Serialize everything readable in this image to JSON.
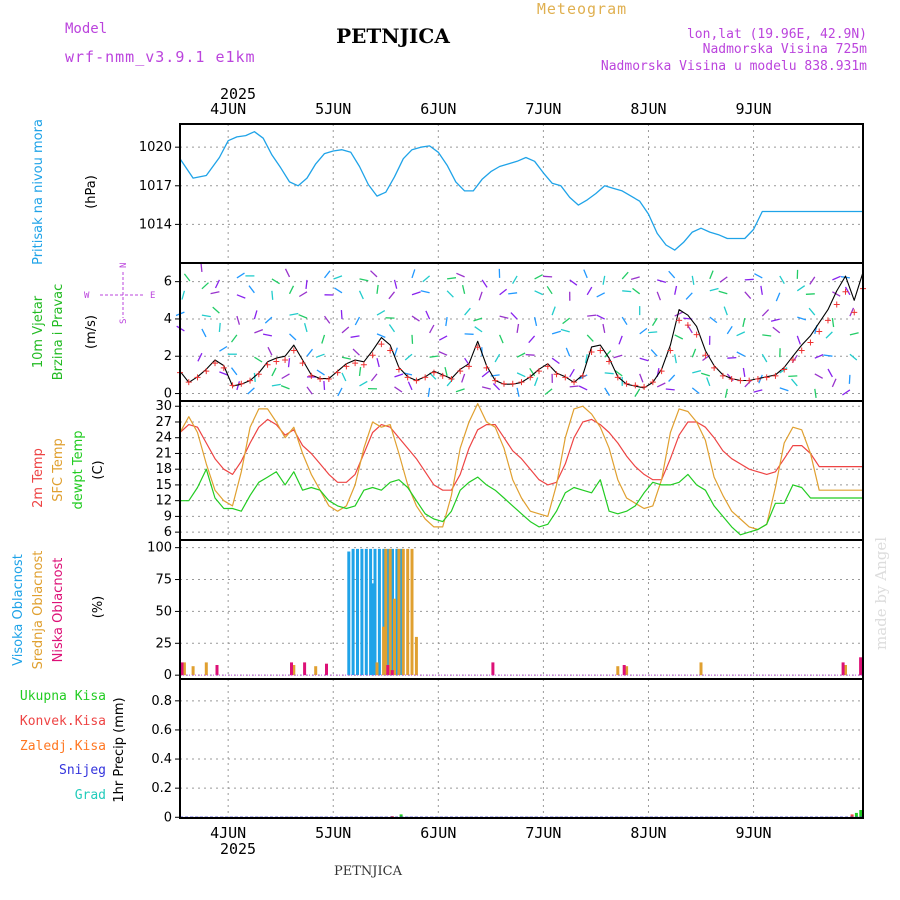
{
  "header": {
    "model_label": "Model",
    "model_name": "wrf-nmm_v3.9.1 e1km",
    "title": "PETNJICA",
    "meteogram_label": "Meteogram",
    "coords": "lon,lat (19.96E, 42.9N)",
    "elevation": "Nadmorska Visina 725m",
    "model_elevation": "Nadmorska Visina u modelu 838.931m",
    "footer_title": "PETNJICA",
    "watermark": "made by Angel"
  },
  "time_axis": {
    "year": "2025",
    "days": [
      "4JUN",
      "5JUN",
      "6JUN",
      "7JUN",
      "8JUN",
      "9JUN"
    ],
    "range_hours": [
      -11,
      145
    ]
  },
  "colors": {
    "pressure": "#1fa3e8",
    "wind_label": "#22bb22",
    "t2m": "#ee4444",
    "tsfc": "#e0a030",
    "dewpt": "#22cc22",
    "cloud_high": "#1fa3e8",
    "cloud_mid": "#e0a030",
    "cloud_low": "#dd1177",
    "precip_total": "#22cc22",
    "precip_conv": "#ee4444",
    "precip_frz": "#ff7722",
    "precip_snow": "#3333dd",
    "precip_hail": "#22ccbb",
    "wind_dir_legend": "#bb44dd"
  },
  "chart_data": [
    {
      "panel": "pressure",
      "type": "line",
      "ylabel": "Pritisak na nivou mora",
      "unit": "(hPa)",
      "yticks": [
        1014,
        1017,
        1020
      ],
      "ylim": [
        1011,
        1021.8
      ],
      "series": [
        {
          "name": "Pritisak na nivou mora",
          "x": [
            -11,
            -8,
            -5,
            -2,
            0,
            2,
            4,
            6,
            8,
            10,
            12,
            14,
            16,
            18,
            20,
            22,
            24,
            26,
            28,
            30,
            32,
            34,
            36,
            38,
            40,
            42,
            44,
            46,
            48,
            50,
            52,
            54,
            56,
            58,
            60,
            62,
            64,
            66,
            68,
            70,
            72,
            74,
            76,
            78,
            80,
            82,
            84,
            86,
            88,
            90,
            92,
            94,
            96,
            98,
            100,
            102,
            104,
            106,
            108,
            110,
            112,
            114,
            116,
            118,
            120,
            122,
            124,
            126,
            128,
            130,
            132,
            134,
            136,
            138,
            140,
            142,
            144,
            145
          ],
          "values": [
            1019.1,
            1017.6,
            1017.8,
            1019.2,
            1020.5,
            1020.8,
            1020.9,
            1021.2,
            1020.7,
            1019.4,
            1018.4,
            1017.3,
            1017.0,
            1017.6,
            1018.7,
            1019.5,
            1019.7,
            1019.8,
            1019.6,
            1018.5,
            1017.1,
            1016.2,
            1016.5,
            1017.7,
            1019.1,
            1019.8,
            1020.0,
            1020.1,
            1019.6,
            1018.6,
            1017.3,
            1016.6,
            1016.6,
            1017.5,
            1018.1,
            1018.5,
            1018.7,
            1018.9,
            1019.2,
            1018.9,
            1018.0,
            1017.2,
            1017.0,
            1016.1,
            1015.5,
            1015.9,
            1016.4,
            1017.0,
            1016.8,
            1016.6,
            1016.2,
            1015.8,
            1014.8,
            1013.3,
            1012.4,
            1012.0,
            1012.6,
            1013.4,
            1013.7,
            1013.4,
            1013.2,
            1012.9,
            1012.9,
            1012.9,
            1013.6,
            1015.0,
            1015.0,
            1015.0,
            1015.0,
            1015.0,
            1015.0,
            1015.0,
            1015.0,
            1015.0,
            1015.0,
            1015.0,
            1015.0,
            1015.0
          ]
        }
      ]
    },
    {
      "panel": "wind",
      "type": "line",
      "ylabel_1": "10m Vjetar",
      "ylabel_2": "Brzina i Pravac",
      "unit": "(m/s)",
      "dir_legend": {
        "n": "N",
        "s": "S",
        "w": "W",
        "e": "E"
      },
      "yticks": [
        0,
        2,
        4,
        6
      ],
      "ylim": [
        -0.4,
        7
      ],
      "series": [
        {
          "name": "10m Vjetar",
          "x": [
            -11,
            -9,
            -7,
            -5,
            -3,
            -1,
            1,
            3,
            5,
            7,
            9,
            11,
            13,
            15,
            17,
            19,
            21,
            23,
            25,
            27,
            29,
            31,
            33,
            35,
            37,
            39,
            41,
            43,
            45,
            47,
            49,
            51,
            53,
            55,
            57,
            59,
            61,
            63,
            65,
            67,
            69,
            71,
            73,
            75,
            77,
            79,
            81,
            83,
            85,
            87,
            89,
            91,
            93,
            95,
            97,
            99,
            101,
            103,
            105,
            107,
            109,
            111,
            113,
            115,
            117,
            119,
            121,
            123,
            125,
            127,
            129,
            131,
            133,
            135,
            137,
            139,
            141,
            143,
            145
          ],
          "values": [
            1.2,
            0.6,
            0.9,
            1.3,
            1.8,
            1.5,
            0.4,
            0.5,
            0.7,
            1.1,
            1.7,
            1.9,
            2.0,
            2.6,
            1.8,
            1.0,
            0.8,
            0.8,
            1.2,
            1.6,
            1.8,
            1.7,
            2.3,
            3.0,
            2.6,
            1.4,
            0.9,
            0.7,
            0.9,
            1.2,
            1.0,
            0.8,
            1.3,
            1.6,
            2.8,
            1.5,
            0.7,
            0.5,
            0.5,
            0.6,
            0.9,
            1.3,
            1.6,
            1.1,
            0.9,
            0.6,
            1.0,
            2.5,
            2.6,
            1.9,
            0.9,
            0.5,
            0.4,
            0.3,
            0.6,
            1.3,
            2.6,
            4.5,
            4.2,
            3.6,
            2.3,
            1.5,
            1.0,
            0.8,
            0.7,
            0.7,
            0.8,
            0.9,
            1.0,
            1.4,
            2.0,
            2.6,
            3.1,
            3.8,
            4.5,
            5.5,
            6.3,
            5.0,
            6.5
          ]
        }
      ]
    },
    {
      "panel": "temperature",
      "type": "line",
      "ylabel_1": "2m Temp",
      "ylabel_2": "SFC Temp",
      "ylabel_3": "dewpt Temp",
      "unit": "(C)",
      "yticks": [
        6,
        9,
        12,
        15,
        18,
        21,
        24,
        27,
        30
      ],
      "ylim": [
        4.5,
        31
      ],
      "x": [
        -11,
        -9,
        -7,
        -5,
        -3,
        -1,
        1,
        3,
        5,
        7,
        9,
        11,
        13,
        15,
        17,
        19,
        21,
        23,
        25,
        27,
        29,
        31,
        33,
        35,
        37,
        39,
        41,
        43,
        45,
        47,
        49,
        51,
        53,
        55,
        57,
        59,
        61,
        63,
        65,
        67,
        69,
        71,
        73,
        75,
        77,
        79,
        81,
        83,
        85,
        87,
        89,
        91,
        93,
        95,
        97,
        99,
        101,
        103,
        105,
        107,
        109,
        111,
        113,
        115,
        117,
        119,
        121,
        123,
        125,
        127,
        129,
        131,
        133,
        135,
        137,
        139,
        141,
        143,
        145
      ],
      "series": [
        {
          "name": "2m Temp",
          "values": [
            25.0,
            26.5,
            26.0,
            23.0,
            20.0,
            18.0,
            17.0,
            19.5,
            23.0,
            26.0,
            27.5,
            26.5,
            24.5,
            25.5,
            22.5,
            21.0,
            19.0,
            17.0,
            15.5,
            15.5,
            17.0,
            21.0,
            25.0,
            26.5,
            26.0,
            24.0,
            22.0,
            20.0,
            17.5,
            15.0,
            14.0,
            14.0,
            17.0,
            22.0,
            25.5,
            26.5,
            26.5,
            24.0,
            21.5,
            20.0,
            18.0,
            16.0,
            15.0,
            15.5,
            19.0,
            24.0,
            27.0,
            27.5,
            26.5,
            25.0,
            23.0,
            20.5,
            18.5,
            17.0,
            16.0,
            16.0,
            20.0,
            24.5,
            27.0,
            27.0,
            26.0,
            24.0,
            21.5,
            20.0,
            19.0,
            18.0,
            17.5,
            17.0,
            17.5,
            20.0,
            22.5,
            22.5,
            21.0,
            18.5,
            18.5,
            18.5,
            18.5,
            18.5,
            18.5
          ]
        },
        {
          "name": "SFC Temp",
          "values": [
            25.0,
            28.0,
            25.0,
            19.0,
            14.0,
            12.0,
            11.0,
            17.5,
            26.0,
            29.5,
            29.5,
            27.0,
            24.0,
            26.0,
            21.0,
            17.0,
            14.0,
            11.0,
            10.0,
            11.0,
            15.0,
            22.0,
            27.0,
            26.0,
            26.5,
            21.0,
            15.0,
            11.0,
            8.5,
            7.0,
            7.0,
            13.0,
            22.0,
            27.0,
            30.5,
            27.0,
            26.0,
            22.0,
            16.0,
            12.5,
            10.0,
            9.5,
            9.0,
            15.0,
            24.0,
            29.5,
            30.0,
            28.5,
            26.0,
            22.0,
            16.0,
            12.5,
            11.5,
            10.5,
            11.0,
            16.0,
            25.0,
            29.5,
            29.0,
            27.0,
            23.5,
            16.5,
            13.0,
            10.0,
            8.5,
            7.0,
            6.5,
            7.5,
            14.5,
            23.0,
            26.0,
            25.5,
            21.0,
            14.0,
            14.0,
            14.0,
            14.0,
            14.0,
            14.0
          ]
        },
        {
          "name": "dewpt Temp",
          "values": [
            12.0,
            12.0,
            14.5,
            18.0,
            12.5,
            10.5,
            10.5,
            10.0,
            13.0,
            15.5,
            16.5,
            17.5,
            15.0,
            17.5,
            14.0,
            14.5,
            14.0,
            12.0,
            11.0,
            10.5,
            11.0,
            14.0,
            14.5,
            14.0,
            15.5,
            16.0,
            14.5,
            12.0,
            9.5,
            8.5,
            8.0,
            10.0,
            14.0,
            15.5,
            16.5,
            15.0,
            14.0,
            12.5,
            11.0,
            9.5,
            8.0,
            7.0,
            7.5,
            10.0,
            13.5,
            14.5,
            14.0,
            13.5,
            16.0,
            10.0,
            9.5,
            10.0,
            11.0,
            13.5,
            15.5,
            15.0,
            15.0,
            15.5,
            17.0,
            15.0,
            14.0,
            11.0,
            9.0,
            7.0,
            5.5,
            6.0,
            6.5,
            7.5,
            11.5,
            11.5,
            15.0,
            14.5,
            12.5,
            12.5,
            12.5,
            12.5,
            12.5,
            12.5,
            12.5
          ]
        }
      ]
    },
    {
      "panel": "clouds",
      "type": "bar",
      "ylabel_1": "Visoka Oblacnost",
      "ylabel_2": "Srednja Oblacnost",
      "ylabel_3": "Niska Oblacnost",
      "unit": "(%)",
      "yticks": [
        0,
        25,
        50,
        75,
        100
      ],
      "ylim": [
        -3,
        106
      ],
      "series": [
        {
          "name": "Visoka Oblacnost",
          "x": [
            28,
            29,
            30,
            31,
            32,
            33,
            33.5,
            34,
            35,
            36,
            37,
            38,
            39,
            40
          ],
          "values": [
            97,
            99,
            99,
            99,
            99,
            99,
            72,
            99,
            99,
            99,
            99,
            99,
            99,
            99
          ]
        },
        {
          "name": "Srednja Oblacnost",
          "x": [
            -10,
            -8,
            -5,
            15,
            20,
            34,
            35.5,
            36,
            37,
            38,
            39,
            40,
            41,
            42,
            43,
            89,
            91,
            108,
            141
          ],
          "values": [
            10,
            7,
            10,
            8,
            7,
            10,
            38,
            99,
            99,
            60,
            99,
            99,
            99,
            99,
            30,
            7,
            7,
            10,
            8
          ]
        },
        {
          "name": "Niska Oblacnost",
          "x": [
            -11,
            -3,
            14,
            17,
            22,
            36,
            37,
            60,
            90,
            140,
            144
          ],
          "values": [
            10,
            8,
            10,
            10,
            9,
            8,
            4,
            10,
            8,
            10,
            14
          ]
        }
      ]
    },
    {
      "panel": "precip",
      "type": "bar",
      "ylabel": "1hr Precip (mm)",
      "legend": [
        "Ukupna Kisa",
        "Konvek.Kisa",
        "Zaledj.Kisa",
        "Snijeg",
        "Grad"
      ],
      "yticks": [
        0,
        0.2,
        0.4,
        0.6,
        0.8
      ],
      "ylim": [
        -0.005,
        0.95
      ],
      "series": [
        {
          "name": "Ukupna Kisa",
          "x": [
            39.5,
            143.5,
            144.5
          ],
          "values": [
            0.02,
            0.03,
            0.05
          ]
        },
        {
          "name": "Konvek.Kisa",
          "x": [
            37.5,
            142.5
          ],
          "values": [
            0.008,
            0.02
          ]
        }
      ]
    }
  ]
}
